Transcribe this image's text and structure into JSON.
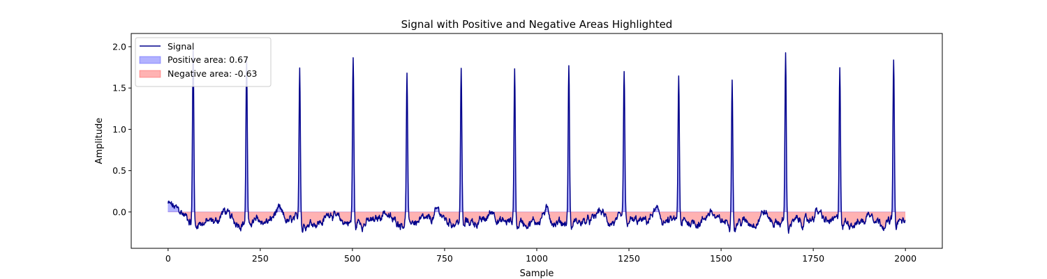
{
  "chart_data": {
    "type": "line",
    "title": "Signal with Positive and Negative Areas Highlighted",
    "xlabel": "Sample",
    "ylabel": "Amplitude",
    "xlim": [
      -100,
      2100
    ],
    "ylim": [
      -0.44,
      2.16
    ],
    "xticks": [
      0,
      250,
      500,
      750,
      1000,
      1250,
      1500,
      1750,
      2000
    ],
    "yticks": [
      0.0,
      0.5,
      1.0,
      1.5,
      2.0
    ],
    "xtick_labels": [
      "0",
      "250",
      "500",
      "750",
      "1000",
      "1250",
      "1500",
      "1750",
      "2000"
    ],
    "ytick_labels": [
      "0.0",
      "0.5",
      "1.0",
      "1.5",
      "2.0"
    ],
    "grid": false,
    "legend_position": "top-left",
    "series": [
      {
        "name": "Signal",
        "kind": "line",
        "color": "#00008b"
      },
      {
        "name": "Positive area: 0.67",
        "kind": "fill",
        "color": "#0000ff",
        "alpha": 0.3
      },
      {
        "name": "Negative area: -0.63",
        "kind": "fill",
        "color": "#ff0000",
        "alpha": 0.3
      }
    ],
    "signal_shape": {
      "length": 2000,
      "peak_positions": [
        68,
        213,
        357,
        502,
        648,
        795,
        940,
        1087,
        1237,
        1385,
        1530,
        1675,
        1822,
        1968
      ],
      "peak_heights": [
        1.97,
        1.86,
        1.77,
        1.87,
        1.67,
        1.69,
        1.75,
        1.78,
        1.67,
        1.66,
        1.68,
        1.88,
        1.77,
        1.82
      ],
      "baseline_mean": -0.12,
      "noise_range": [
        -0.3,
        0.28
      ]
    }
  }
}
